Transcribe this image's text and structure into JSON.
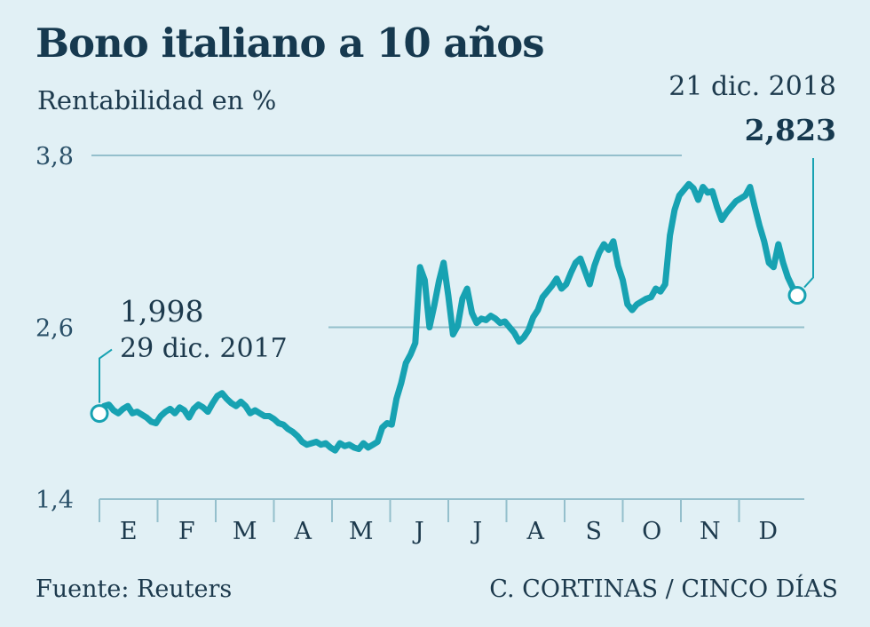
{
  "header": {
    "title": "Bono italiano a 10 años",
    "subtitle": "Rentabilidad en %"
  },
  "footer": {
    "source": "Fuente: Reuters",
    "credit": "C. CORTINAS / CINCO DÍAS"
  },
  "colors": {
    "background": "#e1f0f5",
    "line": "#17a2b2",
    "grid": "#94bfcc",
    "text": "#1d3a4d"
  },
  "annotations": {
    "start": {
      "value": "1,998",
      "date": "29 dic. 2017"
    },
    "end": {
      "value": "2,823",
      "date": "21 dic. 2018"
    }
  },
  "chart_data": {
    "type": "line",
    "title": "Bono italiano a 10 años",
    "subtitle": "Rentabilidad en %",
    "ylim": [
      1.4,
      3.8
    ],
    "yticks": [
      1.4,
      2.6,
      3.8
    ],
    "ytick_labels": [
      "1,4",
      "2,6",
      "3,8"
    ],
    "months": [
      "E",
      "F",
      "M",
      "A",
      "M",
      "J",
      "J",
      "A",
      "S",
      "O",
      "N",
      "D"
    ],
    "grid": "horizontal",
    "series": [
      {
        "values": [
          1.998,
          2.05,
          2.06,
          2.02,
          2.0,
          2.03,
          2.05,
          2.0,
          2.01,
          1.99,
          1.97,
          1.94,
          1.93,
          1.98,
          2.01,
          2.03,
          2.0,
          2.04,
          2.02,
          1.97,
          2.03,
          2.06,
          2.04,
          2.01,
          2.07,
          2.12,
          2.14,
          2.1,
          2.07,
          2.05,
          2.08,
          2.05,
          2.0,
          2.02,
          2.0,
          1.98,
          1.98,
          1.96,
          1.93,
          1.92,
          1.89,
          1.87,
          1.84,
          1.8,
          1.78,
          1.79,
          1.8,
          1.78,
          1.79,
          1.76,
          1.74,
          1.79,
          1.77,
          1.78,
          1.76,
          1.75,
          1.79,
          1.76,
          1.78,
          1.8,
          1.9,
          1.93,
          1.92,
          2.1,
          2.21,
          2.35,
          2.41,
          2.49,
          3.02,
          2.93,
          2.6,
          2.75,
          2.92,
          3.05,
          2.82,
          2.55,
          2.61,
          2.8,
          2.87,
          2.7,
          2.63,
          2.66,
          2.65,
          2.68,
          2.66,
          2.63,
          2.64,
          2.6,
          2.56,
          2.5,
          2.53,
          2.58,
          2.67,
          2.72,
          2.81,
          2.85,
          2.89,
          2.94,
          2.87,
          2.9,
          2.98,
          3.05,
          3.08,
          2.99,
          2.9,
          3.03,
          3.12,
          3.18,
          3.14,
          3.2,
          3.03,
          2.93,
          2.76,
          2.72,
          2.76,
          2.78,
          2.8,
          2.81,
          2.87,
          2.85,
          2.9,
          3.24,
          3.42,
          3.52,
          3.56,
          3.6,
          3.57,
          3.49,
          3.58,
          3.54,
          3.55,
          3.44,
          3.35,
          3.4,
          3.44,
          3.48,
          3.5,
          3.52,
          3.58,
          3.44,
          3.31,
          3.2,
          3.05,
          3.02,
          3.18,
          3.05,
          2.95,
          2.88,
          2.823
        ]
      }
    ]
  }
}
